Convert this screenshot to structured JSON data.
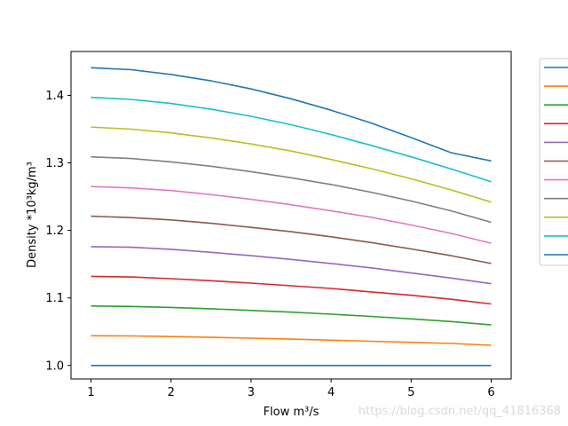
{
  "chart_data": {
    "type": "line",
    "title": "",
    "xlabel": "Flow m³/s",
    "ylabel": "Density  *10³kg/m³",
    "xlim": [
      0.75,
      6.25
    ],
    "ylim": [
      0.98,
      1.465
    ],
    "xticks": [
      "1",
      "2",
      "3",
      "4",
      "5",
      "6"
    ],
    "yticks": [
      "1.0",
      "1.1",
      "1.2",
      "1.3",
      "1.4"
    ],
    "grid": false,
    "legend_position": "outside-right",
    "x": [
      1,
      1.5,
      2,
      2.5,
      3,
      3.5,
      4,
      4.5,
      5,
      5.5,
      6
    ],
    "series": [
      {
        "color": "#1f77b4",
        "values": [
          1.0,
          1.0,
          1.0,
          1.0,
          1.0,
          1.0,
          1.0,
          1.0,
          1.0,
          1.0,
          1.0
        ]
      },
      {
        "color": "#ff7f0e",
        "values": [
          1.044,
          1.0437,
          1.0428,
          1.0417,
          1.0404,
          1.039,
          1.0375,
          1.0359,
          1.0343,
          1.0326,
          1.03
        ]
      },
      {
        "color": "#2ca02c",
        "values": [
          1.088,
          1.0874,
          1.086,
          1.084,
          1.0815,
          1.079,
          1.076,
          1.0727,
          1.069,
          1.065,
          1.06
        ]
      },
      {
        "color": "#d62728",
        "values": [
          1.132,
          1.131,
          1.1285,
          1.1255,
          1.122,
          1.118,
          1.114,
          1.109,
          1.104,
          1.098,
          1.091
        ]
      },
      {
        "color": "#9467bd",
        "values": [
          1.176,
          1.175,
          1.172,
          1.1675,
          1.1625,
          1.157,
          1.151,
          1.1445,
          1.137,
          1.1295,
          1.121
        ]
      },
      {
        "color": "#8c564b",
        "values": [
          1.221,
          1.219,
          1.2155,
          1.2105,
          1.2045,
          1.198,
          1.1905,
          1.182,
          1.1725,
          1.1625,
          1.151
        ]
      },
      {
        "color": "#e377c2",
        "values": [
          1.265,
          1.263,
          1.259,
          1.253,
          1.246,
          1.238,
          1.229,
          1.2195,
          1.208,
          1.1955,
          1.181
        ]
      },
      {
        "color": "#7f7f7f",
        "values": [
          1.309,
          1.3065,
          1.3015,
          1.295,
          1.287,
          1.278,
          1.268,
          1.2565,
          1.2435,
          1.229,
          1.212
        ]
      },
      {
        "color": "#bcbd22",
        "values": [
          1.353,
          1.35,
          1.3445,
          1.337,
          1.328,
          1.3175,
          1.305,
          1.2915,
          1.2765,
          1.26,
          1.242
        ]
      },
      {
        "color": "#17becf",
        "values": [
          1.397,
          1.394,
          1.388,
          1.3795,
          1.369,
          1.3565,
          1.342,
          1.326,
          1.309,
          1.291,
          1.272
        ]
      },
      {
        "color": "#1f77b4",
        "values": [
          1.441,
          1.438,
          1.431,
          1.4215,
          1.4095,
          1.395,
          1.378,
          1.359,
          1.3375,
          1.315,
          1.303
        ]
      }
    ]
  },
  "watermark": "https://blog.csdn.net/qq_41816368"
}
